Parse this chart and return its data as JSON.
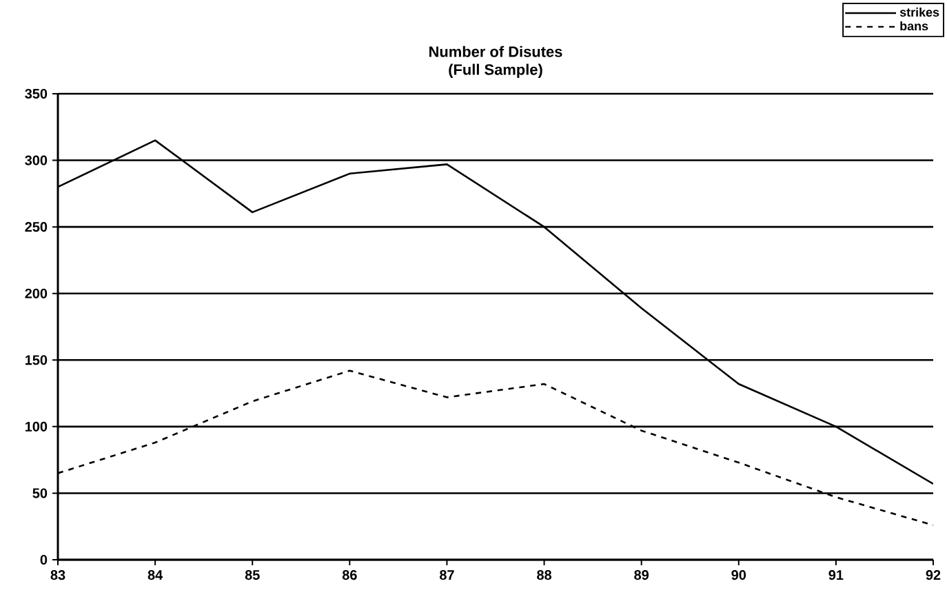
{
  "chart_data": {
    "type": "line",
    "title": "Number of Disutes",
    "subtitle": "(Full Sample)",
    "x": [
      83,
      84,
      85,
      86,
      87,
      88,
      89,
      90,
      91,
      92
    ],
    "series": [
      {
        "name": "strikes",
        "color": "#000000",
        "line_style": "solid",
        "values": [
          280,
          315,
          261,
          290,
          297,
          250,
          189,
          132,
          100,
          57
        ]
      },
      {
        "name": "bans",
        "color": "#000000",
        "line_style": "dashed",
        "values": [
          65,
          88,
          119,
          142,
          122,
          132,
          97,
          73,
          47,
          26
        ]
      }
    ],
    "xlim": [
      83,
      92
    ],
    "xticks": [
      83,
      84,
      85,
      86,
      87,
      88,
      89,
      90,
      91,
      92
    ],
    "ylim": [
      0,
      350
    ],
    "yticks": [
      0,
      50,
      100,
      150,
      200,
      250,
      300,
      350
    ],
    "grid": "y",
    "legend": "top right",
    "marker": "none"
  }
}
